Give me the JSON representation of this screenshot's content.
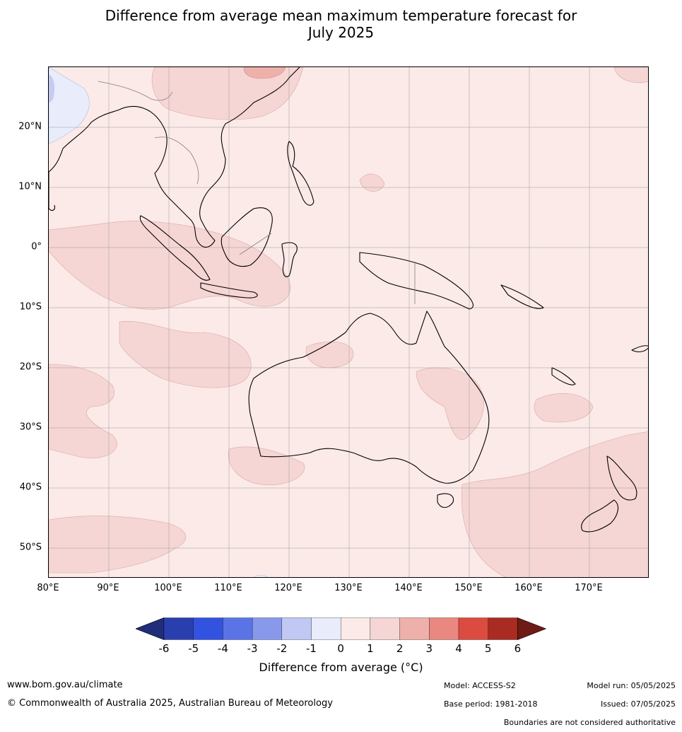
{
  "title": {
    "line1": "Difference from average mean maximum temperature forecast for",
    "line2": "July 2025"
  },
  "map": {
    "lat_labels": [
      "20°N",
      "10°N",
      "0°",
      "10°S",
      "20°S",
      "30°S",
      "40°S",
      "50°S"
    ],
    "lon_labels": [
      "80°E",
      "90°E",
      "100°E",
      "110°E",
      "120°E",
      "130°E",
      "140°E",
      "150°E",
      "160°E",
      "170°E"
    ],
    "colors": {
      "band_0_1": "#fbeae8",
      "band_1_2": "#f5d6d4",
      "band_2_3": "#eeb0aa",
      "band_m1_0": "#e8ecfb",
      "band_m2_m1": "#c4cbf4",
      "land_outline": "#000000",
      "border": "#7f7f7f",
      "grid": "#9a9a9a"
    }
  },
  "colorbar": {
    "ticks": [
      "-6",
      "-5",
      "-4",
      "-3",
      "-2",
      "-1",
      "0",
      "1",
      "2",
      "3",
      "4",
      "5",
      "6"
    ],
    "colors": [
      "#1f2d7a",
      "#2a3fae",
      "#3252e0",
      "#5a74e6",
      "#8899ec",
      "#c1c8f4",
      "#e8ecfb",
      "#fbeae8",
      "#f5d6d4",
      "#eeb0aa",
      "#e98880",
      "#db4b40",
      "#a92b22",
      "#6f1a14"
    ],
    "label": "Difference from average (°C)"
  },
  "footer": {
    "website": "www.bom.gov.au/climate",
    "copyright": "© Commonwealth of Australia 2025, Australian Bureau of Meteorology",
    "model": "Model: ACCESS-S2",
    "model_run": "Model run: 05/05/2025",
    "base_period": "Base period: 1981-2018",
    "issued": "Issued: 07/05/2025",
    "boundaries": "Boundaries are not considered authoritative"
  }
}
